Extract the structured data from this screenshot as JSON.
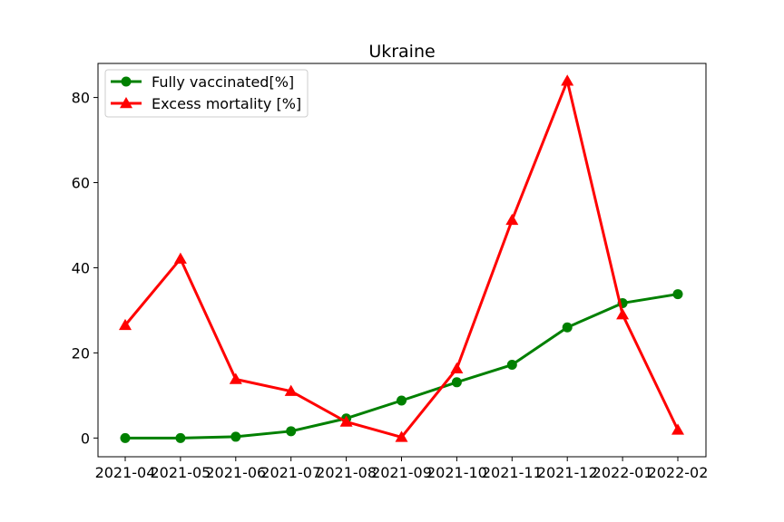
{
  "chart_data": {
    "type": "line",
    "title": "Ukraine",
    "xlabel": "",
    "ylabel": "",
    "x": [
      "2021-04",
      "2021-05",
      "2021-06",
      "2021-07",
      "2021-08",
      "2021-09",
      "2021-10",
      "2021-11",
      "2021-12",
      "2022-01",
      "2022-02"
    ],
    "yticks": [
      0,
      20,
      40,
      60,
      80
    ],
    "ylim": [
      -4.4,
      88
    ],
    "grid": false,
    "legend_position": "top-left",
    "series": [
      {
        "name": "Fully vaccinated[%]",
        "color": "#008000",
        "marker": "circle",
        "values": [
          0.0,
          0.0,
          0.3,
          1.6,
          4.6,
          8.8,
          13.1,
          17.2,
          26.0,
          31.7,
          33.8
        ]
      },
      {
        "name": "Excess mortality [%]",
        "color": "#ff0000",
        "marker": "triangle",
        "values": [
          26.5,
          42.1,
          13.8,
          11.0,
          3.8,
          0.2,
          16.3,
          51.2,
          83.9,
          29.0,
          1.9
        ]
      }
    ]
  }
}
